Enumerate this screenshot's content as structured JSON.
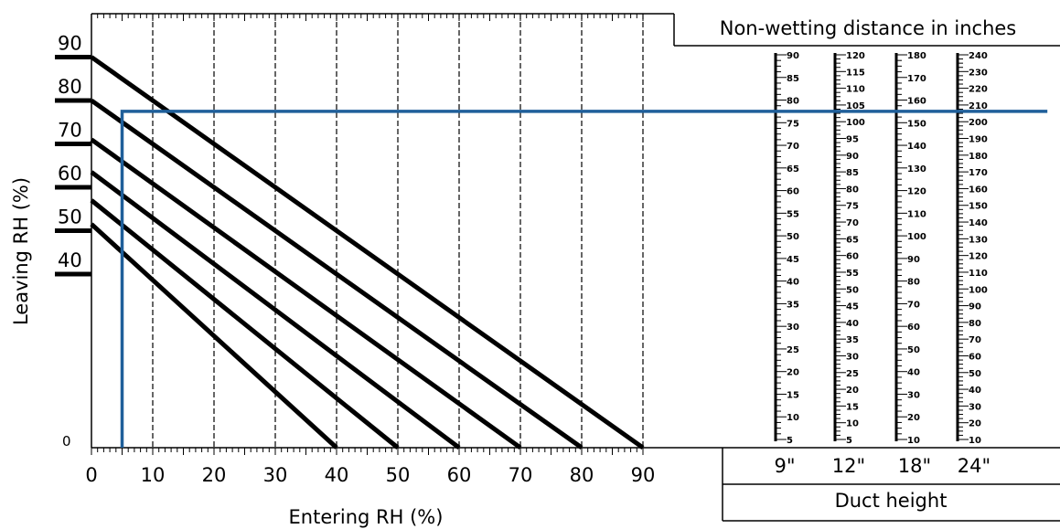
{
  "chart_data": {
    "type": "line",
    "xlabel": "Entering RH (%)",
    "ylabel": "Leaving RH (%)",
    "xlim": [
      0,
      90
    ],
    "ylim": [
      0,
      100
    ],
    "x_ticks": [
      "0",
      "10",
      "20",
      "30",
      "40",
      "50",
      "60",
      "70",
      "80",
      "90"
    ],
    "y_ticks": [
      {
        "label": "90",
        "value": 90
      },
      {
        "label": "80",
        "value": 80
      },
      {
        "label": "70",
        "value": 70
      },
      {
        "label": "60",
        "value": 60
      },
      {
        "label": "50",
        "value": 50
      },
      {
        "label": "40",
        "value": 40
      },
      {
        "label": "0",
        "value": 0
      }
    ],
    "series": [
      {
        "x": [
          0,
          90
        ],
        "y": [
          90,
          0
        ]
      },
      {
        "x": [
          0,
          80
        ],
        "y": [
          80,
          0
        ]
      },
      {
        "x": [
          0,
          70
        ],
        "y": [
          71,
          0
        ]
      },
      {
        "x": [
          0,
          60
        ],
        "y": [
          63.5,
          0
        ]
      },
      {
        "x": [
          0,
          50
        ],
        "y": [
          57,
          0
        ]
      },
      {
        "x": [
          0,
          40
        ],
        "y": [
          51.5,
          0
        ]
      }
    ],
    "example_path": {
      "x": [
        5,
        5,
        156
      ],
      "y": [
        0,
        77.5,
        77.5
      ]
    },
    "grid": "vertical dashed",
    "colors": {
      "curve": "#000000",
      "example": "#1f5f9a",
      "grid": "#000000"
    }
  },
  "nomograph": {
    "title": "Non-wetting distance in inches",
    "footer": "Duct height",
    "scales": [
      {
        "duct": "9\"",
        "labels": [
          "90",
          "85",
          "80",
          "75",
          "70",
          "65",
          "60",
          "55",
          "50",
          "45",
          "40",
          "35",
          "30",
          "25",
          "20",
          "15",
          "10",
          "5"
        ]
      },
      {
        "duct": "12\"",
        "labels": [
          "120",
          "115",
          "110",
          "105",
          "100",
          "95",
          "90",
          "85",
          "80",
          "75",
          "70",
          "65",
          "60",
          "55",
          "50",
          "45",
          "40",
          "35",
          "30",
          "25",
          "20",
          "15",
          "10",
          "5"
        ]
      },
      {
        "duct": "18\"",
        "labels": [
          "180",
          "170",
          "160",
          "150",
          "140",
          "130",
          "120",
          "110",
          "100",
          "90",
          "80",
          "70",
          "60",
          "50",
          "40",
          "30",
          "20",
          "10"
        ]
      },
      {
        "duct": "24\"",
        "labels": [
          "240",
          "230",
          "220",
          "210",
          "200",
          "190",
          "180",
          "170",
          "160",
          "150",
          "140",
          "130",
          "120",
          "110",
          "100",
          "90",
          "80",
          "70",
          "60",
          "50",
          "40",
          "30",
          "20",
          "10"
        ]
      }
    ]
  }
}
